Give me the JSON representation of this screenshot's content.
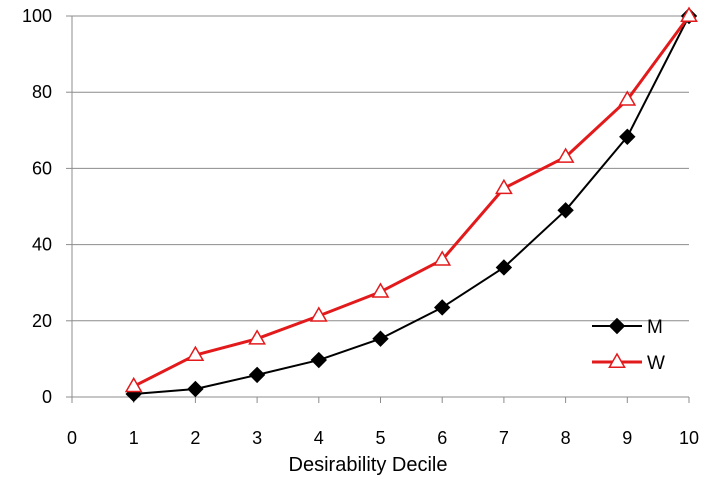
{
  "chart_data": {
    "type": "line",
    "title": "",
    "xlabel": "Desirability Decile",
    "ylabel": "",
    "x_ticks": [
      0,
      1,
      2,
      3,
      4,
      5,
      6,
      7,
      8,
      9,
      10
    ],
    "y_ticks": [
      0,
      20,
      40,
      60,
      80,
      100
    ],
    "xlim": [
      0,
      10
    ],
    "ylim": [
      0,
      100
    ],
    "grid": "horizontal",
    "legend_position": "bottom-right",
    "series": [
      {
        "name": "M",
        "color": "#000000",
        "marker": "diamond",
        "x": [
          1,
          2,
          3,
          4,
          5,
          6,
          7,
          8,
          9,
          10
        ],
        "y": [
          0.8,
          2.1,
          5.8,
          9.7,
          15.3,
          23.5,
          34,
          49,
          68.3,
          100
        ]
      },
      {
        "name": "W",
        "color": "#e31a1c",
        "marker": "triangle",
        "x": [
          1,
          2,
          3,
          4,
          5,
          6,
          7,
          8,
          9,
          10
        ],
        "y": [
          2.8,
          11,
          15.3,
          21.3,
          27.6,
          36,
          54.8,
          63,
          78,
          100
        ]
      }
    ]
  }
}
